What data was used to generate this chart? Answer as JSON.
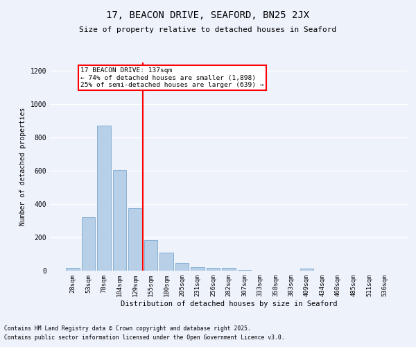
{
  "title_line1": "17, BEACON DRIVE, SEAFORD, BN25 2JX",
  "title_line2": "Size of property relative to detached houses in Seaford",
  "xlabel": "Distribution of detached houses by size in Seaford",
  "ylabel": "Number of detached properties",
  "footnote1": "Contains HM Land Registry data © Crown copyright and database right 2025.",
  "footnote2": "Contains public sector information licensed under the Open Government Licence v3.0.",
  "annotation_title": "17 BEACON DRIVE: 137sqm",
  "annotation_line2": "← 74% of detached houses are smaller (1,898)",
  "annotation_line3": "25% of semi-detached houses are larger (639) →",
  "bar_color": "#b8cfe8",
  "bar_edge_color": "#7aaad0",
  "vline_color": "red",
  "vline_x": 4.5,
  "categories": [
    "28sqm",
    "53sqm",
    "78sqm",
    "104sqm",
    "129sqm",
    "155sqm",
    "180sqm",
    "205sqm",
    "231sqm",
    "256sqm",
    "282sqm",
    "307sqm",
    "333sqm",
    "358sqm",
    "383sqm",
    "409sqm",
    "434sqm",
    "460sqm",
    "485sqm",
    "511sqm",
    "536sqm"
  ],
  "values": [
    15,
    320,
    870,
    605,
    375,
    185,
    107,
    47,
    22,
    18,
    18,
    5,
    0,
    0,
    0,
    11,
    0,
    0,
    0,
    0,
    0
  ],
  "ylim": [
    0,
    1250
  ],
  "yticks": [
    0,
    200,
    400,
    600,
    800,
    1000,
    1200
  ],
  "background_color": "#eef2fb",
  "grid_color": "#ffffff",
  "fig_width": 6.0,
  "fig_height": 5.0,
  "dpi": 100
}
